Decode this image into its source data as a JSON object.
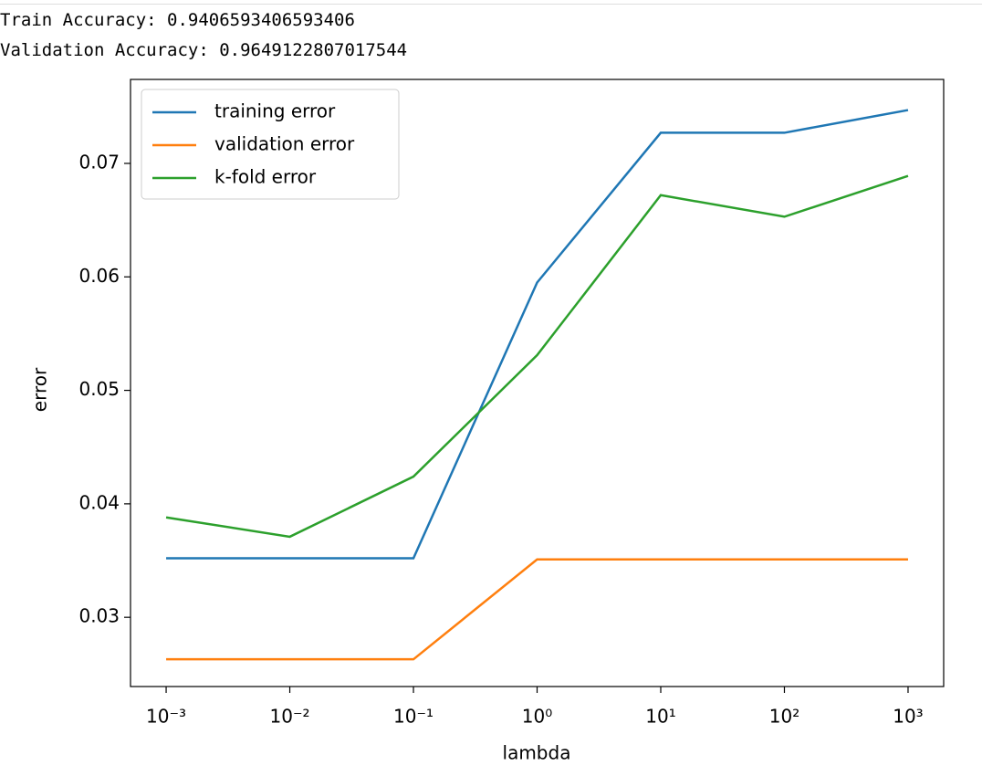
{
  "output": {
    "lines": [
      "Train Accuracy: 0.9406593406593406",
      "Validation Accuracy: 0.9649122807017544"
    ]
  },
  "chart_data": {
    "type": "line",
    "x_label": "lambda",
    "y_label": "error",
    "x": [
      0.001,
      0.01,
      0.1,
      1,
      10,
      100,
      1000
    ],
    "xscale": "log",
    "xlim": [
      0.000515,
      1941
    ],
    "xticks": [
      {
        "value": 0.001,
        "label": "10⁻³"
      },
      {
        "value": 0.01,
        "label": "10⁻²"
      },
      {
        "value": 0.1,
        "label": "10⁻¹"
      },
      {
        "value": 1,
        "label": "10⁰"
      },
      {
        "value": 10,
        "label": "10¹"
      },
      {
        "value": 100,
        "label": "10²"
      },
      {
        "value": 1000,
        "label": "10³"
      }
    ],
    "ylim": [
      0.0239,
      0.0774
    ],
    "yticks": [
      0.03,
      0.04,
      0.05,
      0.06,
      0.07
    ],
    "grid": false,
    "legend": "upper left",
    "series": [
      {
        "name": "training error",
        "color": "#1f77b4",
        "values": [
          0.0352,
          0.0352,
          0.0352,
          0.0595,
          0.0727,
          0.0727,
          0.0747
        ]
      },
      {
        "name": "validation error",
        "color": "#ff7f0e",
        "values": [
          0.0263,
          0.0263,
          0.0263,
          0.0351,
          0.0351,
          0.0351,
          0.0351
        ]
      },
      {
        "name": "k-fold error",
        "color": "#2ca02c",
        "values": [
          0.0388,
          0.0371,
          0.0424,
          0.0531,
          0.0672,
          0.0653,
          0.0689
        ]
      }
    ]
  }
}
